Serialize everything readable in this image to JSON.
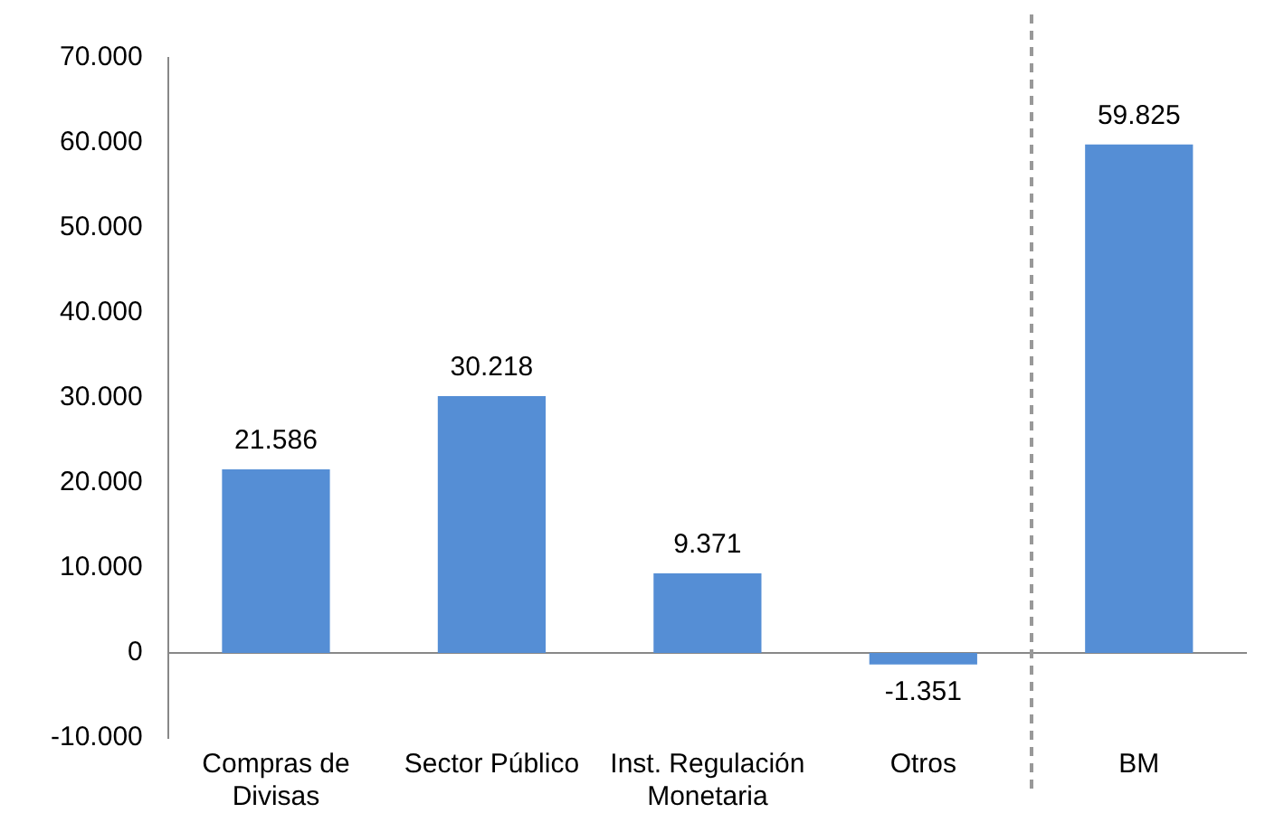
{
  "chart_data": {
    "type": "bar",
    "categories": [
      "Compras de Divisas",
      "Sector Público",
      "Inst. Regulación Monetaria",
      "Otros",
      "BM"
    ],
    "values": [
      21586,
      30218,
      9371,
      -1351,
      59825
    ],
    "value_labels": [
      "21.586",
      "30.218",
      "9.371",
      "-1.351",
      "59.825"
    ],
    "color": "#558ed5",
    "ylim": [
      -10000,
      70000
    ],
    "yticks": [
      {
        "value": -10000,
        "label": "-10.000"
      },
      0,
      {
        "value": 10000,
        "label": "10.000"
      },
      {
        "value": 20000,
        "label": "20.000"
      },
      {
        "value": 30000,
        "label": "30.000"
      },
      {
        "value": 40000,
        "label": "40.000"
      },
      {
        "value": 50000,
        "label": "50.000"
      },
      {
        "value": 60000,
        "label": "60.000"
      },
      {
        "value": 70000,
        "label": "70.000"
      }
    ],
    "legend": false
  }
}
